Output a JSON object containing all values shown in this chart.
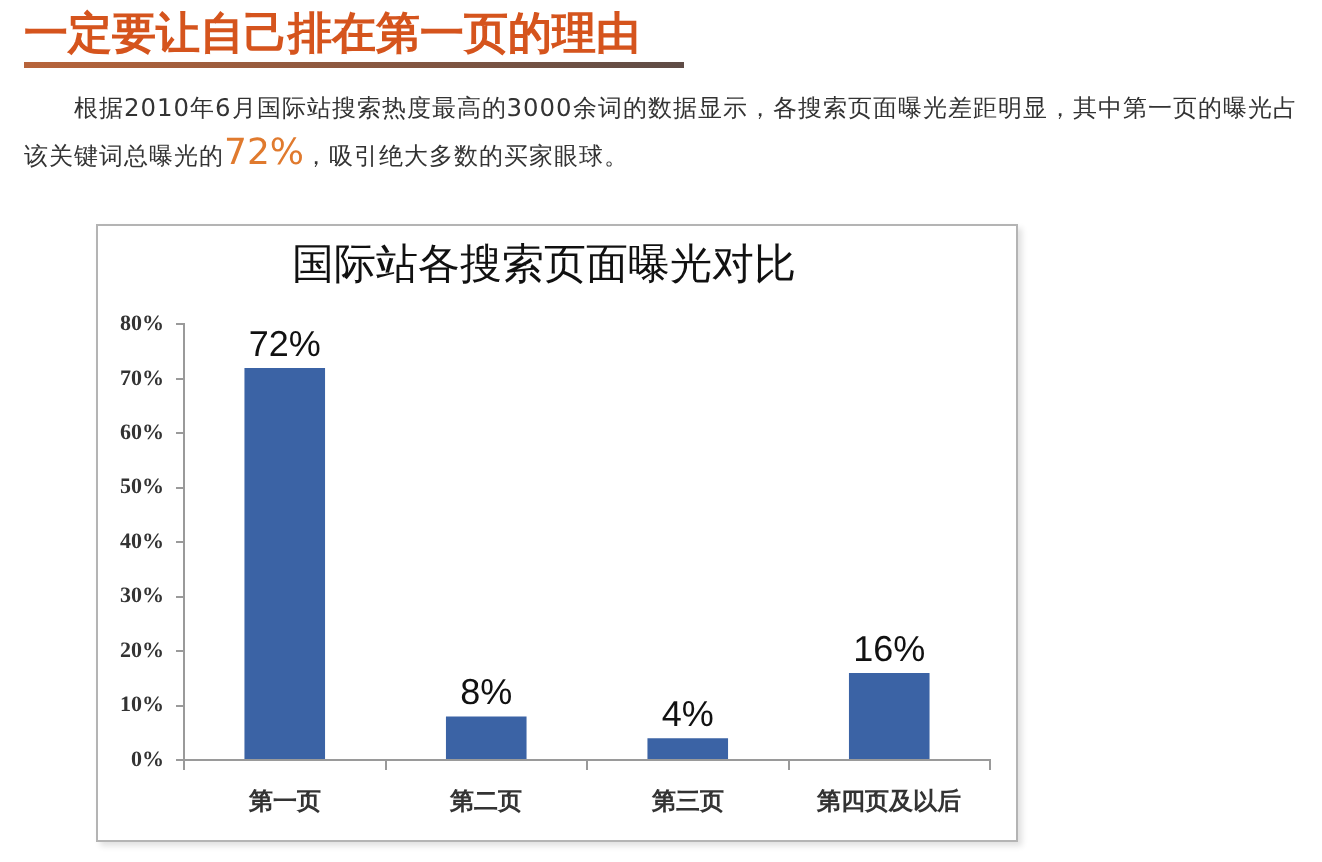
{
  "chart_data": {
    "type": "bar",
    "title": "国际站各搜索页面曝光对比",
    "annotations": [
      "一定要让自己排在第一页的理由",
      "根据2010年6月国际站搜索热度最高的3000余词的数据显示，各搜索页面曝光差距明显，其中第一页的曝光占该关键词总曝光的72%，吸引绝大多数的买家眼球。"
    ],
    "categories": [
      "第一页",
      "第二页",
      "第三页",
      "第四页及以后"
    ],
    "values": [
      72,
      8,
      4,
      16
    ],
    "value_labels": [
      "72%",
      "8%",
      "4%",
      "16%"
    ],
    "color": "#3b63a5",
    "ylim": [
      0,
      80
    ],
    "yticks": [
      {
        "value": 0,
        "label": "0%"
      },
      {
        "value": 10,
        "label": "10%"
      },
      {
        "value": 20,
        "label": "20%"
      },
      {
        "value": 30,
        "label": "30%"
      },
      {
        "value": 40,
        "label": "40%"
      },
      {
        "value": 50,
        "label": "50%"
      },
      {
        "value": 60,
        "label": "60%"
      },
      {
        "value": 70,
        "label": "70%"
      },
      {
        "value": 80,
        "label": "80%"
      }
    ]
  }
}
